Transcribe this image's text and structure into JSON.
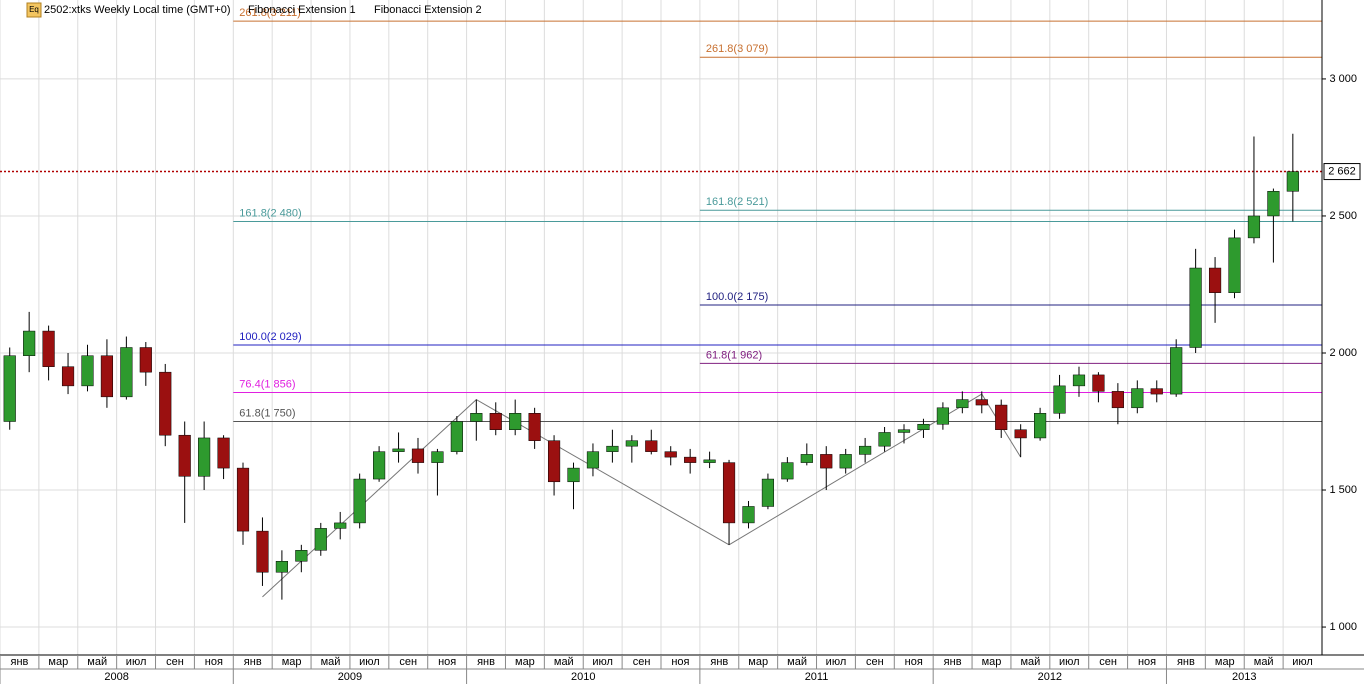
{
  "header": {
    "icon": "Eq",
    "symbol": "2502:xtks Weekly Local time (GMT+0)",
    "tools": [
      "Fibonacci Extension 1",
      "Fibonacci Extension 2"
    ]
  },
  "chart_data": {
    "type": "candlestick",
    "categories": [
      "2008-01",
      "2008-02",
      "2008-03",
      "2008-04",
      "2008-05",
      "2008-06",
      "2008-07",
      "2008-08",
      "2008-09",
      "2008-10",
      "2008-11",
      "2008-12",
      "2009-01",
      "2009-02",
      "2009-03",
      "2009-04",
      "2009-05",
      "2009-06",
      "2009-07",
      "2009-08",
      "2009-09",
      "2009-10",
      "2009-11",
      "2009-12",
      "2010-01",
      "2010-02",
      "2010-03",
      "2010-04",
      "2010-05",
      "2010-06",
      "2010-07",
      "2010-08",
      "2010-09",
      "2010-10",
      "2010-11",
      "2010-12",
      "2011-01",
      "2011-02",
      "2011-03",
      "2011-04",
      "2011-05",
      "2011-06",
      "2011-07",
      "2011-08",
      "2011-09",
      "2011-10",
      "2011-11",
      "2011-12",
      "2012-01",
      "2012-02",
      "2012-03",
      "2012-04",
      "2012-05",
      "2012-06",
      "2012-07",
      "2012-08",
      "2012-09",
      "2012-10",
      "2012-11",
      "2012-12",
      "2013-01",
      "2013-02",
      "2013-03",
      "2013-04",
      "2013-05",
      "2013-06",
      "2013-07"
    ],
    "ohlc": [
      [
        1750,
        2020,
        1720,
        1990
      ],
      [
        1990,
        2150,
        1930,
        2080
      ],
      [
        2080,
        2100,
        1900,
        1950
      ],
      [
        1950,
        2000,
        1850,
        1880
      ],
      [
        1880,
        2030,
        1860,
        1990
      ],
      [
        1990,
        2050,
        1800,
        1840
      ],
      [
        1840,
        2060,
        1830,
        2020
      ],
      [
        2020,
        2040,
        1880,
        1930
      ],
      [
        1930,
        1960,
        1660,
        1700
      ],
      [
        1700,
        1750,
        1380,
        1550
      ],
      [
        1550,
        1750,
        1500,
        1690
      ],
      [
        1690,
        1700,
        1540,
        1580
      ],
      [
        1580,
        1600,
        1300,
        1350
      ],
      [
        1350,
        1400,
        1150,
        1200
      ],
      [
        1200,
        1280,
        1100,
        1240
      ],
      [
        1240,
        1300,
        1200,
        1280
      ],
      [
        1280,
        1380,
        1260,
        1360
      ],
      [
        1360,
        1420,
        1320,
        1380
      ],
      [
        1380,
        1560,
        1360,
        1540
      ],
      [
        1540,
        1660,
        1530,
        1640
      ],
      [
        1640,
        1710,
        1600,
        1650
      ],
      [
        1650,
        1690,
        1560,
        1600
      ],
      [
        1600,
        1650,
        1480,
        1640
      ],
      [
        1640,
        1770,
        1630,
        1750
      ],
      [
        1750,
        1830,
        1680,
        1780
      ],
      [
        1780,
        1820,
        1700,
        1720
      ],
      [
        1720,
        1830,
        1700,
        1780
      ],
      [
        1780,
        1800,
        1650,
        1680
      ],
      [
        1680,
        1700,
        1480,
        1530
      ],
      [
        1530,
        1600,
        1430,
        1580
      ],
      [
        1580,
        1670,
        1550,
        1640
      ],
      [
        1640,
        1720,
        1600,
        1660
      ],
      [
        1660,
        1700,
        1600,
        1680
      ],
      [
        1680,
        1720,
        1630,
        1640
      ],
      [
        1640,
        1660,
        1590,
        1620
      ],
      [
        1620,
        1650,
        1560,
        1600
      ],
      [
        1600,
        1640,
        1580,
        1610
      ],
      [
        1600,
        1610,
        1300,
        1380
      ],
      [
        1380,
        1460,
        1360,
        1440
      ],
      [
        1440,
        1560,
        1430,
        1540
      ],
      [
        1540,
        1620,
        1530,
        1600
      ],
      [
        1600,
        1670,
        1590,
        1630
      ],
      [
        1630,
        1660,
        1500,
        1580
      ],
      [
        1580,
        1650,
        1560,
        1630
      ],
      [
        1630,
        1690,
        1600,
        1660
      ],
      [
        1660,
        1730,
        1640,
        1710
      ],
      [
        1710,
        1740,
        1670,
        1720
      ],
      [
        1720,
        1760,
        1690,
        1740
      ],
      [
        1740,
        1820,
        1720,
        1800
      ],
      [
        1800,
        1860,
        1780,
        1830
      ],
      [
        1830,
        1860,
        1780,
        1810
      ],
      [
        1810,
        1830,
        1690,
        1720
      ],
      [
        1720,
        1740,
        1620,
        1690
      ],
      [
        1690,
        1800,
        1680,
        1780
      ],
      [
        1780,
        1920,
        1760,
        1880
      ],
      [
        1880,
        1950,
        1840,
        1920
      ],
      [
        1920,
        1930,
        1820,
        1860
      ],
      [
        1860,
        1890,
        1740,
        1800
      ],
      [
        1800,
        1900,
        1780,
        1870
      ],
      [
        1870,
        1900,
        1820,
        1850
      ],
      [
        1850,
        2050,
        1840,
        2020
      ],
      [
        2020,
        2380,
        2000,
        2310
      ],
      [
        2310,
        2350,
        2110,
        2220
      ],
      [
        2220,
        2450,
        2200,
        2420
      ],
      [
        2420,
        2790,
        2400,
        2500
      ],
      [
        2500,
        2600,
        2330,
        2590
      ],
      [
        2590,
        2800,
        2480,
        2662
      ]
    ],
    "up_color": "#2e9a2e",
    "down_color": "#9b1010",
    "ylim": [
      898,
      3288
    ],
    "yticks": [
      {
        "value": 1000,
        "label": "1 000"
      },
      {
        "value": 1500,
        "label": "1 500"
      },
      {
        "value": 2000,
        "label": "2 000"
      },
      {
        "value": 2500,
        "label": "2 500"
      },
      {
        "value": 3000,
        "label": "3 000"
      }
    ],
    "month_labels": [
      "янв",
      "мар",
      "май",
      "июл",
      "сен",
      "ноя",
      "янв",
      "мар",
      "май",
      "июл",
      "сен",
      "ноя",
      "янв",
      "мар",
      "май",
      "июл",
      "сен",
      "ноя",
      "янв",
      "мар",
      "май",
      "июл",
      "сен",
      "ноя",
      "янв",
      "мар",
      "май",
      "июл",
      "сен",
      "ноя",
      "янв",
      "мар",
      "май",
      "июл"
    ],
    "years": [
      "2008",
      "2009",
      "2010",
      "2011",
      "2012",
      "2013"
    ],
    "grid": true,
    "current_price": {
      "value": 2662,
      "label": "2 662"
    },
    "fibonacci": [
      {
        "start": "2009-01",
        "points": [
          [
            "2009-02",
            1110
          ],
          [
            "2010-01",
            1830
          ],
          [
            "2011-02",
            1300
          ]
        ],
        "levels": [
          {
            "value": 1750,
            "label": "61.8(1 750)",
            "color": "#555555"
          },
          {
            "value": 1856,
            "label": "76.4(1 856)",
            "color": "#e020e0"
          },
          {
            "value": 2029,
            "label": "100.0(2 029)",
            "color": "#2020c0"
          },
          {
            "value": 2480,
            "label": "161.8(2 480)",
            "color": "#4a9a9a"
          },
          {
            "value": 3211,
            "label": "261.8(3 211)",
            "color": "#c87030"
          }
        ]
      },
      {
        "start": "2011-01",
        "points": [
          [
            "2011-02",
            1300
          ],
          [
            "2012-03",
            1850
          ],
          [
            "2012-05",
            1620
          ]
        ],
        "levels": [
          {
            "value": 1962,
            "label": "61.8(1 962)",
            "color": "#802080"
          },
          {
            "value": 2175,
            "label": "100.0(2 175)",
            "color": "#202080"
          },
          {
            "value": 2521,
            "label": "161.8(2 521)",
            "color": "#4a9a9a"
          },
          {
            "value": 3079,
            "label": "261.8(3 079)",
            "color": "#c87030"
          }
        ]
      }
    ]
  }
}
